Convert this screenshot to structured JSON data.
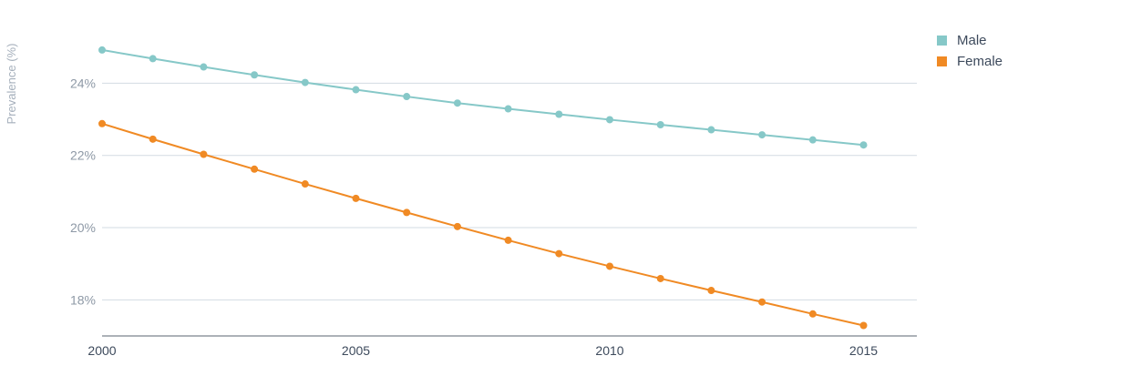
{
  "chart_data": {
    "type": "line",
    "ylabel": "Prevalence (%)",
    "xlabel": "",
    "x": [
      2000,
      2001,
      2002,
      2003,
      2004,
      2005,
      2006,
      2007,
      2008,
      2009,
      2010,
      2011,
      2012,
      2013,
      2014,
      2015
    ],
    "x_ticks": [
      "2000",
      "2005",
      "2010",
      "2015"
    ],
    "y_ticks": [
      {
        "value": 18,
        "label": "18%"
      },
      {
        "value": 20,
        "label": "20%"
      },
      {
        "value": 22,
        "label": "22%"
      },
      {
        "value": 24,
        "label": "24%"
      }
    ],
    "xlim": [
      2000,
      2016.05
    ],
    "ylim": [
      17.0,
      25.8
    ],
    "grid": true,
    "legend_position": "top-right",
    "series": [
      {
        "name": "Male",
        "color": "#86c8c8",
        "values": [
          24.92,
          24.68,
          24.45,
          24.23,
          24.02,
          23.82,
          23.63,
          23.45,
          23.29,
          23.14,
          22.99,
          22.85,
          22.71,
          22.57,
          22.43,
          22.29
        ]
      },
      {
        "name": "Female",
        "color": "#f08a24",
        "values": [
          22.88,
          22.45,
          22.03,
          21.62,
          21.21,
          20.81,
          20.42,
          20.03,
          19.65,
          19.28,
          18.93,
          18.59,
          18.26,
          17.94,
          17.61,
          17.29
        ]
      }
    ]
  }
}
